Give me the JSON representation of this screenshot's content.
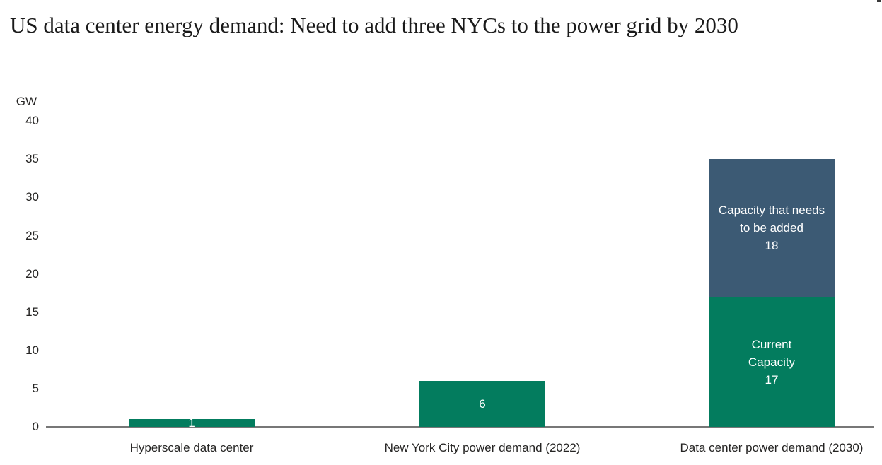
{
  "title": "US data center energy demand: Need to add three NYCs to the power grid by 2030",
  "colors": {
    "bar_green": "#037C5E",
    "bar_navy": "#3C5A74",
    "axis_line": "#777777",
    "axis_text": "#252423",
    "bar_label_text": "#FFFFFF",
    "title_text": "#1A1A1A",
    "background": "#FFFFFF"
  },
  "chart_data": {
    "type": "bar",
    "stacked": true,
    "title": "US data center energy demand: Need to add three NYCs to the power grid by 2030",
    "ylabel": "GW",
    "xlabel": "",
    "ylim": [
      0,
      40
    ],
    "yticks": [
      40,
      35,
      30,
      25,
      20,
      15,
      10,
      5,
      0
    ],
    "gridlines": false,
    "legend_position": "none",
    "categories": [
      "Hyperscale data center",
      "New York City power demand (2022)",
      "Data center power demand (2030)"
    ],
    "totals": [
      1,
      6,
      35
    ],
    "bars": [
      {
        "category": "Hyperscale data center",
        "segments": [
          {
            "value": 1,
            "color_key": "green",
            "label_lines": [
              "1"
            ]
          }
        ]
      },
      {
        "category": "New York City power demand (2022)",
        "segments": [
          {
            "value": 6,
            "color_key": "green",
            "label_lines": [
              "6"
            ]
          }
        ]
      },
      {
        "category": "Data center power demand (2030)",
        "segments": [
          {
            "name": "Current Capacity",
            "value": 17,
            "color_key": "green",
            "label_lines": [
              "Current",
              "Capacity",
              "17"
            ]
          },
          {
            "name": "Capacity that needs to be added",
            "value": 18,
            "color_key": "navy",
            "label_lines": [
              "Capacity that needs",
              "to be added",
              "18"
            ]
          }
        ]
      }
    ]
  }
}
